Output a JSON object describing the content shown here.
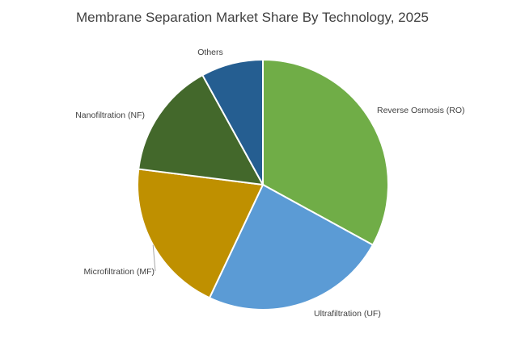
{
  "chart_data": {
    "type": "pie",
    "title": "Membrane Separation Market Share By Technology, 2025",
    "start_angle_deg": 0,
    "direction": "clockwise",
    "slices": [
      {
        "label": "Reverse Osmosis (RO)",
        "value": 33,
        "color": "#70AD47"
      },
      {
        "label": "Ultrafiltration (UF)",
        "value": 24,
        "color": "#5B9BD5"
      },
      {
        "label": "Microfiltration (MF)",
        "value": 20,
        "color": "#BF9000"
      },
      {
        "label": "Nanofiltration (NF)",
        "value": 15,
        "color": "#43682B"
      },
      {
        "label": "Others",
        "value": 8,
        "color": "#255E91"
      }
    ]
  }
}
